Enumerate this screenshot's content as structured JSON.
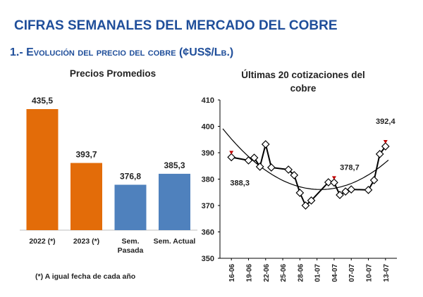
{
  "header": {
    "title": "CIFRAS SEMANALES DEL MERCADO DEL COBRE",
    "subtitle": "1.- Evolución del precio del cobre (¢US$/Lb.)"
  },
  "chart_data": [
    {
      "type": "bar",
      "title": "Precios Promedios",
      "categories": [
        "2022 (*)",
        "2023 (*)",
        "Sem. Pasada",
        "Sem. Actual"
      ],
      "values": [
        435.5,
        393.7,
        376.8,
        385.3
      ],
      "value_labels": [
        "435,5",
        "393,7",
        "376,8",
        "385,3"
      ],
      "colors": [
        "#e36c09",
        "#e36c09",
        "#4f81bd",
        "#4f81bd"
      ]
    },
    {
      "type": "line",
      "title": "Últimas 20 cotizaciones del cobre",
      "x": [
        "16-06",
        "19-06",
        "20-06",
        "21-06",
        "22-06",
        "23-06",
        "26-06",
        "27-06",
        "28-06",
        "29-06",
        "30-06",
        "03-07",
        "04-07",
        "05-07",
        "06-07",
        "07-07",
        "10-07",
        "11-07",
        "12-07",
        "13-07"
      ],
      "values": [
        388.3,
        387.1,
        388.1,
        384.7,
        393.2,
        384.4,
        383.6,
        381.5,
        374.8,
        370.0,
        371.9,
        378.8,
        378.7,
        374.0,
        375.3,
        376.1,
        375.9,
        379.6,
        389.5,
        392.4
      ],
      "value_labels": [
        "388,3",
        null,
        null,
        null,
        null,
        null,
        null,
        null,
        null,
        null,
        null,
        null,
        "378,7",
        null,
        null,
        null,
        null,
        null,
        null,
        "392,4"
      ],
      "color": "#000000",
      "marker_color": "#ffffff",
      "highlight_color": "#c00000",
      "xlim": [
        "14-06",
        "15-07"
      ],
      "xticks": [
        "16-06",
        "19-06",
        "22-06",
        "25-06",
        "28-06",
        "01-07",
        "04-07",
        "07-07",
        "10-07",
        "13-07"
      ],
      "ylim": [
        350,
        410
      ],
      "yticks": [
        350,
        360,
        370,
        380,
        390,
        400,
        410
      ],
      "trendline": true
    }
  ],
  "footnote": "(*) A igual fecha de cada año"
}
